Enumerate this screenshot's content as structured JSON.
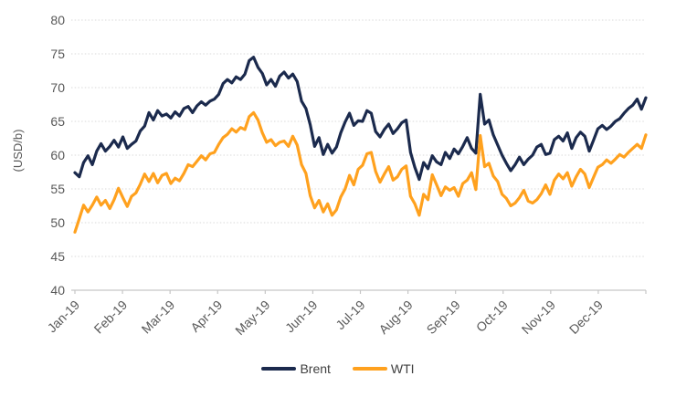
{
  "chart_data": {
    "type": "line",
    "title": "",
    "xlabel": "",
    "ylabel": "(USD/b)",
    "ylim": [
      40,
      80
    ],
    "yticks": [
      40,
      45,
      50,
      55,
      60,
      65,
      70,
      75,
      80
    ],
    "x_months": [
      "Jan-19",
      "Feb-19",
      "Mar-19",
      "Apr-19",
      "May-19",
      "Jun-19",
      "Jul-19",
      "Aug-19",
      "Sep-19",
      "Oct-19",
      "Nov-19",
      "Dec-19"
    ],
    "grid": "horizontal-dotted",
    "legend_position": "bottom-center",
    "series": [
      {
        "name": "Brent",
        "color": "#1b2a4d",
        "values": [
          57.4,
          56.8,
          58.9,
          59.9,
          58.6,
          60.6,
          61.7,
          60.6,
          61.3,
          62.2,
          61.2,
          62.7,
          61.0,
          61.6,
          62.1,
          63.6,
          64.3,
          66.3,
          65.2,
          66.6,
          65.8,
          66.1,
          65.5,
          66.4,
          65.8,
          66.9,
          67.2,
          66.3,
          67.3,
          67.9,
          67.4,
          68.0,
          68.3,
          69.0,
          70.6,
          71.2,
          70.7,
          71.6,
          71.2,
          72.0,
          74.0,
          74.5,
          73.0,
          72.1,
          70.4,
          71.2,
          70.2,
          71.7,
          72.3,
          71.4,
          72.0,
          70.9,
          68.0,
          66.9,
          64.5,
          61.3,
          62.6,
          60.1,
          61.6,
          60.3,
          61.2,
          63.3,
          64.9,
          66.2,
          64.4,
          65.1,
          65.0,
          66.6,
          66.2,
          63.5,
          62.7,
          63.8,
          64.6,
          63.2,
          63.9,
          64.8,
          65.2,
          60.4,
          58.2,
          56.4,
          58.9,
          58.0,
          59.9,
          59.0,
          58.6,
          60.4,
          59.5,
          60.9,
          60.2,
          61.3,
          62.6,
          61.0,
          60.3,
          69.0,
          64.6,
          65.2,
          63.0,
          61.5,
          60.0,
          58.8,
          57.7,
          58.6,
          59.7,
          58.6,
          59.4,
          60.0,
          61.2,
          61.6,
          60.1,
          60.3,
          62.3,
          62.8,
          62.1,
          63.3,
          61.0,
          62.6,
          63.4,
          62.8,
          60.6,
          62.2,
          63.9,
          64.4,
          63.8,
          64.3,
          65.0,
          65.4,
          66.2,
          66.9,
          67.4,
          68.3,
          66.8,
          68.5
        ]
      },
      {
        "name": "WTI",
        "color": "#ffa11e",
        "values": [
          48.6,
          50.6,
          52.6,
          51.6,
          52.6,
          53.8,
          52.6,
          53.3,
          52.1,
          53.4,
          55.1,
          53.7,
          52.4,
          53.9,
          54.4,
          55.7,
          57.2,
          56.1,
          57.3,
          55.9,
          57.0,
          57.3,
          55.8,
          56.6,
          56.2,
          57.3,
          58.6,
          58.3,
          59.1,
          59.9,
          59.3,
          60.2,
          60.4,
          61.6,
          62.6,
          63.1,
          63.9,
          63.4,
          64.1,
          63.8,
          65.7,
          66.3,
          65.2,
          63.3,
          61.9,
          62.3,
          61.4,
          61.9,
          62.1,
          61.3,
          62.8,
          61.5,
          58.6,
          57.3,
          54.0,
          52.2,
          53.3,
          51.6,
          52.8,
          51.1,
          51.9,
          53.8,
          55.0,
          57.0,
          55.6,
          57.9,
          58.5,
          60.2,
          60.4,
          57.6,
          56.0,
          57.2,
          58.3,
          56.3,
          56.8,
          57.9,
          58.4,
          53.9,
          52.8,
          51.1,
          54.2,
          53.4,
          57.1,
          55.6,
          54.0,
          55.3,
          54.8,
          55.2,
          53.9,
          55.8,
          56.3,
          57.4,
          54.9,
          62.9,
          58.3,
          58.8,
          56.9,
          56.1,
          54.2,
          53.6,
          52.5,
          52.9,
          53.7,
          54.8,
          53.2,
          52.9,
          53.4,
          54.3,
          55.6,
          54.2,
          56.3,
          57.2,
          56.5,
          57.4,
          55.4,
          56.8,
          57.9,
          57.2,
          55.2,
          56.7,
          58.2,
          58.6,
          59.3,
          58.8,
          59.4,
          60.1,
          59.7,
          60.4,
          61.0,
          61.6,
          61.0,
          63.0
        ]
      }
    ],
    "style": {
      "grid_color": "#d9d9d9",
      "axis_color": "#c6c6c6",
      "tick_label_color": "#595959",
      "axis_title_color": "#595959",
      "legend_text_color": "#404040"
    }
  }
}
